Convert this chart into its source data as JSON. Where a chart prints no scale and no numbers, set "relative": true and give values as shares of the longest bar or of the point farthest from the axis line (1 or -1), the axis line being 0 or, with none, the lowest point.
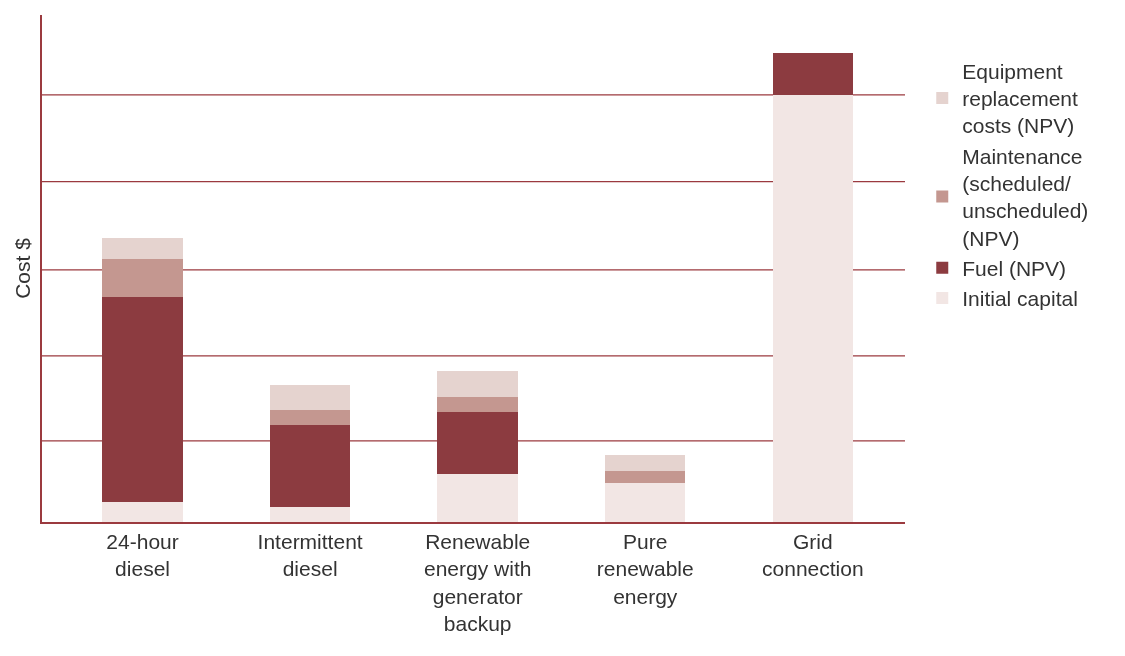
{
  "chart_data": {
    "type": "bar",
    "stacked": true,
    "relative": true,
    "ylabel": "Cost $",
    "legend": "right",
    "ref_lines": [
      {
        "axis": "y",
        "value": 0.173
      },
      {
        "axis": "y",
        "value": 0.354
      },
      {
        "axis": "y",
        "value": 0.537
      },
      {
        "axis": "y",
        "value": 0.725
      },
      {
        "axis": "y",
        "value": 0.91
      }
    ],
    "categories": [
      "24-hour diesel",
      "Intermittent diesel",
      "Renewable energy with generator backup",
      "Pure renewable energy",
      "Grid connection"
    ],
    "series": [
      {
        "name": "Initial capital",
        "color": "#f2e6e4",
        "values": [
          0.043,
          0.032,
          0.102,
          0.083,
          0.91
        ]
      },
      {
        "name": "Fuel (NPV)",
        "color": "#8c3b40",
        "values": [
          0.437,
          0.175,
          0.132,
          0,
          0.09
        ]
      },
      {
        "name": "Maintenance (scheduled/ unscheduled) (NPV)",
        "color": "#c49790",
        "values": [
          0.081,
          0.032,
          0.032,
          0.026,
          0
        ]
      },
      {
        "name": "Equipment replacement costs (NPV)",
        "color": "#e5d3cf",
        "values": [
          0.043,
          0.053,
          0.055,
          0.034,
          0
        ]
      }
    ]
  }
}
